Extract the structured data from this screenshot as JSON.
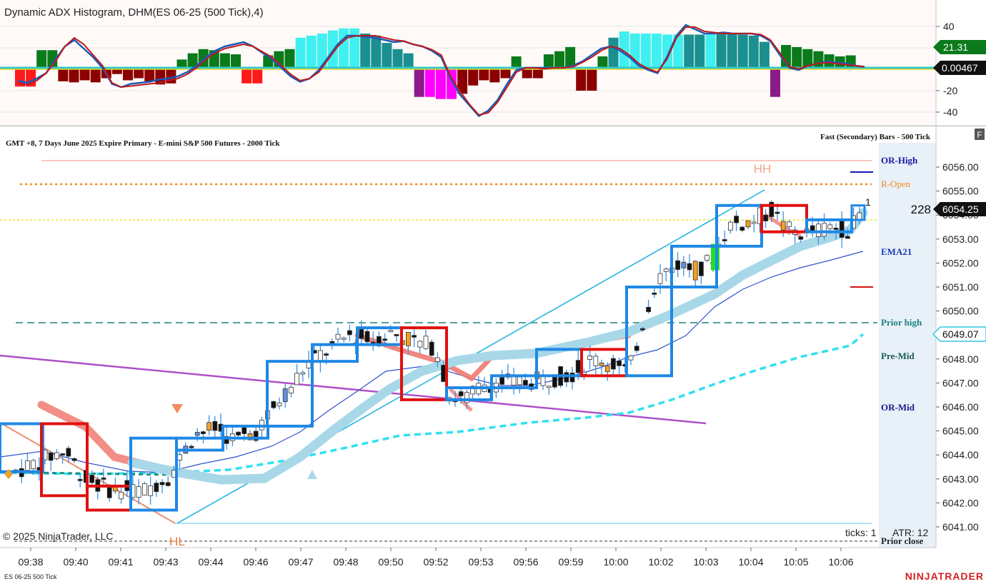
{
  "indicator_panel": {
    "title": "Dynamic ADX Histogram, DHM(ES 06-25 (500 Tick),4)",
    "axis_ticks": [
      "40",
      "-20",
      "-40"
    ],
    "badge_high": "21.31",
    "badge_zero": "0.00467"
  },
  "price_panel": {
    "header_left": "GMT +8, 7 Days June 2025 Expire Primary   - E-mini S&P 500 Futures - 2000 Tick",
    "header_right": "Fast (Secondary) Bars - 500 Tick",
    "panel_button": "F",
    "current_price": "6054.25",
    "price_badge_2": "6049.07",
    "tick_volume": "228",
    "marker_right": "1",
    "copyright": "© 2025 NinjaTrader, LLC",
    "ticks_label": "ticks: 1",
    "atr_label": "ATR: 12",
    "hh_label": "HH",
    "hl_label": "HL"
  },
  "level_labels": {
    "or_high": "OR-High",
    "r_open": "R-Open",
    "ema21": "EMA21",
    "prior_high": "Prior high",
    "pre_mid": "Pre-Mid",
    "or_mid": "OR-Mid",
    "prior_close": "Prior close"
  },
  "footer": {
    "instrument": "ES 06-25 500 Tick",
    "brand": "NINJATRADER"
  },
  "colors": {
    "bull_dark": "#0a7a1a",
    "bear_dark": "#8b0000",
    "bear_light": "#ff1a1a",
    "cyan": "#40f0f0",
    "teal": "#1a9090",
    "magenta": "#ff00ff",
    "purple": "#8b1a8b",
    "box_blue": "#1e88e5",
    "box_red": "#e01010",
    "ema_lightblue": "#a8d8e8",
    "salmon": "#f08070",
    "brand_red": "#d42020"
  },
  "chart_data": [
    {
      "type": "bar",
      "title": "Dynamic ADX Histogram, DHM(ES 06-25 (500 Tick),4)",
      "ylim": [
        -47,
        47
      ],
      "yticks": [
        40,
        -20,
        -40
      ],
      "bars": [
        {
          "v": -18,
          "c": "bear_light"
        },
        {
          "v": -18,
          "c": "bear_light"
        },
        {
          "v": 17,
          "c": "bull_dark"
        },
        {
          "v": 17,
          "c": "bull_dark"
        },
        {
          "v": -13,
          "c": "bear_dark"
        },
        {
          "v": -14,
          "c": "bear_dark"
        },
        {
          "v": -12,
          "c": "bear_dark"
        },
        {
          "v": -14,
          "c": "bear_dark"
        },
        {
          "v": -10,
          "c": "bear_dark"
        },
        {
          "v": -6,
          "c": "bear_dark"
        },
        {
          "v": -12,
          "c": "bear_dark"
        },
        {
          "v": -10,
          "c": "bear_dark"
        },
        {
          "v": -13,
          "c": "bear_dark"
        },
        {
          "v": -16,
          "c": "bear_dark"
        },
        {
          "v": -15,
          "c": "bear_dark"
        },
        {
          "v": 8,
          "c": "bull_dark"
        },
        {
          "v": 14,
          "c": "bull_dark"
        },
        {
          "v": 18,
          "c": "bull_dark"
        },
        {
          "v": 17,
          "c": "bull_dark"
        },
        {
          "v": 14,
          "c": "bull_dark"
        },
        {
          "v": 13,
          "c": "bull_dark"
        },
        {
          "v": -15,
          "c": "bear_light"
        },
        {
          "v": -15,
          "c": "bear_light"
        },
        {
          "v": 12,
          "c": "bull_dark"
        },
        {
          "v": 16,
          "c": "bull_dark"
        },
        {
          "v": 18,
          "c": "bull_dark"
        },
        {
          "v": 29,
          "c": "cyan"
        },
        {
          "v": 31,
          "c": "cyan"
        },
        {
          "v": 33,
          "c": "cyan"
        },
        {
          "v": 36,
          "c": "cyan"
        },
        {
          "v": 38,
          "c": "cyan"
        },
        {
          "v": 38,
          "c": "cyan"
        },
        {
          "v": 33,
          "c": "teal"
        },
        {
          "v": 31,
          "c": "teal"
        },
        {
          "v": 24,
          "c": "teal"
        },
        {
          "v": 18,
          "c": "teal"
        },
        {
          "v": 14,
          "c": "teal"
        },
        {
          "v": -28,
          "c": "purple"
        },
        {
          "v": -28,
          "c": "magenta"
        },
        {
          "v": -30,
          "c": "magenta"
        },
        {
          "v": -30,
          "c": "magenta"
        },
        {
          "v": -25,
          "c": "bear_dark"
        },
        {
          "v": -17,
          "c": "bear_dark"
        },
        {
          "v": -12,
          "c": "bear_dark"
        },
        {
          "v": -14,
          "c": "bear_dark"
        },
        {
          "v": -10,
          "c": "bear_dark"
        },
        {
          "v": 11,
          "c": "bull_dark"
        },
        {
          "v": -10,
          "c": "bear_dark"
        },
        {
          "v": -10,
          "c": "bear_dark"
        },
        {
          "v": 13,
          "c": "bull_dark"
        },
        {
          "v": 16,
          "c": "bull_dark"
        },
        {
          "v": 20,
          "c": "bull_dark"
        },
        {
          "v": -22,
          "c": "bear_dark"
        },
        {
          "v": -22,
          "c": "bear_dark"
        },
        {
          "v": 11,
          "c": "bull_dark"
        },
        {
          "v": 29,
          "c": "teal"
        },
        {
          "v": 35,
          "c": "cyan"
        },
        {
          "v": 33,
          "c": "cyan"
        },
        {
          "v": 33,
          "c": "cyan"
        },
        {
          "v": 33,
          "c": "cyan"
        },
        {
          "v": 32,
          "c": "cyan"
        },
        {
          "v": 32,
          "c": "cyan"
        },
        {
          "v": 32,
          "c": "teal"
        },
        {
          "v": 32,
          "c": "teal"
        },
        {
          "v": 32,
          "c": "cyan"
        },
        {
          "v": 33,
          "c": "teal"
        },
        {
          "v": 33,
          "c": "teal"
        },
        {
          "v": 32,
          "c": "teal"
        },
        {
          "v": 31,
          "c": "teal"
        },
        {
          "v": 25,
          "c": "teal"
        },
        {
          "v": -28,
          "c": "purple"
        },
        {
          "v": 22,
          "c": "bull_dark"
        },
        {
          "v": 20,
          "c": "bull_dark"
        },
        {
          "v": 18,
          "c": "bull_dark"
        },
        {
          "v": 16,
          "c": "bull_dark"
        },
        {
          "v": 13,
          "c": "bull_dark"
        },
        {
          "v": 11,
          "c": "bull_dark"
        },
        {
          "v": 12,
          "c": "bull_dark"
        }
      ],
      "series": [
        {
          "name": "",
          "values": [
            -12,
            -14,
            -10,
            -5,
            8,
            20,
            26,
            18,
            10,
            0,
            -15,
            -18,
            -15,
            -14,
            -13,
            -11,
            -10,
            -8,
            -4,
            2,
            10,
            16,
            20,
            22,
            24,
            20,
            14,
            8,
            0,
            -8,
            -13,
            -10,
            -2,
            10,
            22,
            30,
            30,
            29,
            28,
            26,
            24,
            25,
            22,
            20,
            16,
            10,
            -10,
            -25,
            -35,
            -45,
            -40,
            -30,
            -15,
            -2,
            0,
            0,
            0,
            0,
            0,
            2,
            6,
            12,
            18,
            20,
            16,
            10,
            2,
            -2,
            -5,
            10,
            30,
            40,
            36,
            32,
            32,
            33,
            32,
            32,
            32,
            30,
            25,
            12,
            0,
            -2,
            2,
            4,
            6,
            5,
            4,
            2,
            1
          ]
        },
        {
          "name": "",
          "values": [
            -14,
            -16,
            -12,
            -5,
            6,
            20,
            28,
            22,
            12,
            2,
            -14,
            -18,
            -17,
            -16,
            -15,
            -14,
            -12,
            -10,
            -6,
            0,
            8,
            14,
            18,
            20,
            22,
            20,
            15,
            10,
            2,
            -6,
            -12,
            -10,
            -4,
            8,
            20,
            28,
            30,
            30,
            30,
            28,
            26,
            25,
            22,
            20,
            17,
            12,
            -8,
            -22,
            -34,
            -44,
            -42,
            -32,
            -18,
            -4,
            0,
            0,
            -1,
            0,
            0,
            1,
            5,
            10,
            16,
            20,
            18,
            12,
            4,
            -1,
            -4,
            8,
            28,
            38,
            38,
            34,
            33,
            32,
            32,
            32,
            32,
            31,
            26,
            14,
            1,
            -1,
            2,
            4,
            5,
            4,
            3,
            2,
            1
          ]
        }
      ]
    },
    {
      "type": "candlestick",
      "title": "GMT +8, 7 Days June 2025 Expire Primary   - E-mini S&P 500 Futures - 2000 Tick",
      "x": [
        "09:38",
        "09:40",
        "09:41",
        "09:43",
        "09:44",
        "09:46",
        "09:47",
        "09:48",
        "09:50",
        "09:52",
        "09:53",
        "09:56",
        "09:59",
        "10:00",
        "10:02",
        "10:03",
        "10:04",
        "10:05",
        "10:06"
      ],
      "ylim": [
        6040.7,
        6057.0
      ],
      "yticks": [
        6041,
        6042,
        6043,
        6044,
        6045,
        6046,
        6047,
        6048,
        6049,
        6050,
        6051,
        6052,
        6053,
        6054,
        6055,
        6056
      ],
      "current_price": 6054.25,
      "levels": [
        {
          "name": "OR-High",
          "value": 6056.3
        },
        {
          "name": "R-Open",
          "value": 6055.3
        },
        {
          "name": "Prior high",
          "value": 6049.5
        },
        {
          "name": "Prior close",
          "value": 6040.9
        }
      ],
      "renko_boxes": [
        {
          "x0": "09:38",
          "x1": "09:40",
          "lo": 6043.3,
          "hi": 6045.3,
          "dir": "up"
        },
        {
          "x0": "09:40",
          "x1": "09:41",
          "lo": 6042.3,
          "hi": 6045.3,
          "dir": "down"
        },
        {
          "x0": "09:41",
          "x1": "09:43",
          "lo": 6041.7,
          "hi": 6042.7,
          "dir": "down"
        },
        {
          "x0": "09:43",
          "x1": "09:44",
          "lo": 6041.7,
          "hi": 6044.7,
          "dir": "up"
        },
        {
          "x0": "09:44",
          "x1": "09:46",
          "lo": 6044.2,
          "hi": 6044.7,
          "dir": "up"
        },
        {
          "x0": "09:46",
          "x1": "09:47",
          "lo": 6044.7,
          "hi": 6045.2,
          "dir": "up"
        },
        {
          "x0": "09:47",
          "x1": "09:48",
          "lo": 6045.2,
          "hi": 6047.9,
          "dir": "up"
        },
        {
          "x0": "09:48",
          "x1": "09:50",
          "lo": 6047.9,
          "hi": 6048.6,
          "dir": "up"
        },
        {
          "x0": "09:50",
          "x1": "09:52",
          "lo": 6048.6,
          "hi": 6049.3,
          "dir": "up"
        },
        {
          "x0": "09:52",
          "x1": "09:53",
          "lo": 6046.3,
          "hi": 6049.3,
          "dir": "down"
        },
        {
          "x0": "09:53",
          "x1": "09:56",
          "lo": 6046.3,
          "hi": 6046.8,
          "dir": "up"
        },
        {
          "x0": "09:56",
          "x1": "09:59",
          "lo": 6046.8,
          "hi": 6047.3,
          "dir": "up"
        },
        {
          "x0": "09:59",
          "x1": "10:00",
          "lo": 6047.3,
          "hi": 6048.4,
          "dir": "up"
        },
        {
          "x0": "10:00",
          "x1": "10:01",
          "lo": 6047.3,
          "hi": 6048.4,
          "dir": "down"
        },
        {
          "x0": "10:01",
          "x1": "10:02",
          "lo": 6047.3,
          "hi": 6051.0,
          "dir": "up"
        },
        {
          "x0": "10:02",
          "x1": "10:03",
          "lo": 6051.0,
          "hi": 6052.7,
          "dir": "up"
        },
        {
          "x0": "10:03",
          "x1": "10:04",
          "lo": 6052.7,
          "hi": 6054.4,
          "dir": "up"
        },
        {
          "x0": "10:04",
          "x1": "10:05",
          "lo": 6053.3,
          "hi": 6054.4,
          "dir": "down"
        },
        {
          "x0": "10:05",
          "x1": "10:06",
          "lo": 6053.3,
          "hi": 6053.8,
          "dir": "up"
        }
      ]
    }
  ]
}
